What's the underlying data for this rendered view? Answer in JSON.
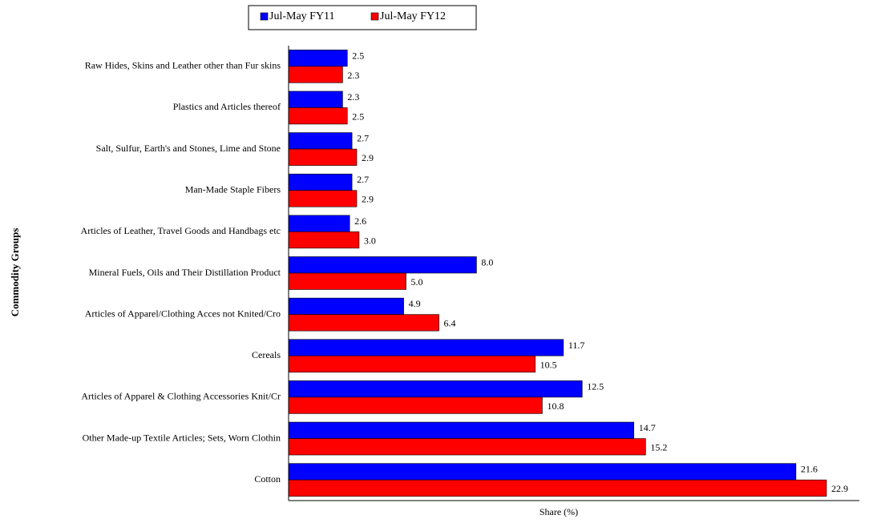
{
  "chart_data": {
    "type": "barh",
    "y_label": "Commodity Groups",
    "x_label": "Share (%)",
    "categories": [
      "Raw Hides, Skins and Leather other than Fur skins",
      "Plastics and Articles thereof",
      "Salt, Sulfur, Earth's and Stones, Lime and Stone",
      "Man-Made Staple Fibers",
      "Articles of Leather, Travel Goods and Handbags etc",
      "Mineral Fuels, Oils and Their Distillation Product",
      "Articles of Apparel/Clothing Acces not Knited/Cro",
      "Cereals",
      "Articles of Apparel & Clothing Accessories Knit/Cr",
      "Other Made-up Textile Articles; Sets, Worn Clothin",
      "Cotton"
    ],
    "series": [
      {
        "name": "Jul-May FY11",
        "color": "#0000ff",
        "values": [
          2.5,
          2.3,
          2.7,
          2.7,
          2.6,
          8.0,
          4.9,
          11.7,
          12.5,
          14.7,
          21.6
        ],
        "value_labels": [
          "2.5",
          "2.3",
          "2.7",
          "2.7",
          "2.6",
          "8.0",
          "4.9",
          "11.7",
          "12.5",
          "14.7",
          "21.6"
        ]
      },
      {
        "name": "Jul-May FY12",
        "color": "#ff0000",
        "values": [
          2.3,
          2.5,
          2.9,
          2.9,
          3.0,
          5.0,
          6.4,
          10.5,
          10.8,
          15.2,
          22.9
        ],
        "value_labels": [
          "2.3",
          "2.5",
          "2.9",
          "2.9",
          "3.0",
          "5.0",
          "6.4",
          "10.5",
          "10.8",
          "15.2",
          "22.9"
        ]
      }
    ],
    "xlim": [
      0,
      24.3
    ],
    "legend": "top"
  }
}
